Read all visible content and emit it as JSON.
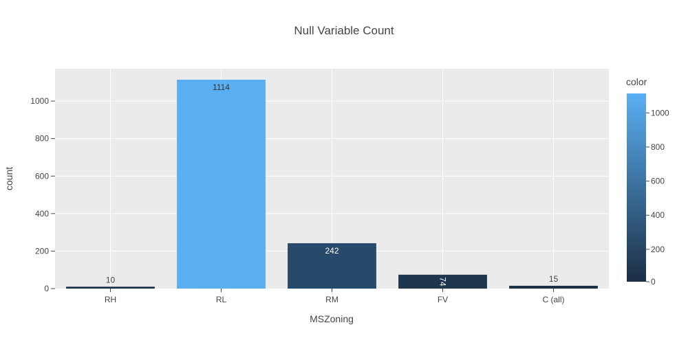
{
  "chart_data": {
    "type": "bar",
    "title": "Null Variable Count",
    "xlabel": "MSZoning",
    "ylabel": "count",
    "categories": [
      "RH",
      "RL",
      "RM",
      "FV",
      "C (all)"
    ],
    "values": [
      10,
      1114,
      242,
      74,
      15
    ],
    "data_labels": [
      "10",
      "1114",
      "242",
      "74",
      "15"
    ],
    "ylim": [
      0,
      1172.6
    ],
    "y_ticks": [
      0,
      200,
      400,
      600,
      800,
      1000
    ],
    "y_tick_labels": [
      "0",
      "200",
      "400",
      "600",
      "800",
      "1000"
    ],
    "grid": true,
    "colorbar": {
      "title": "color",
      "range": [
        10,
        1114
      ],
      "ticks": [
        0,
        200,
        400,
        600,
        800,
        1000
      ],
      "tick_labels": [
        "0",
        "200",
        "400",
        "600",
        "800",
        "1000"
      ],
      "color_low": "#1b2f45",
      "color_high": "#5aaff3"
    },
    "background_color": "#ebebeb",
    "gridline_color": "#ffffff"
  }
}
